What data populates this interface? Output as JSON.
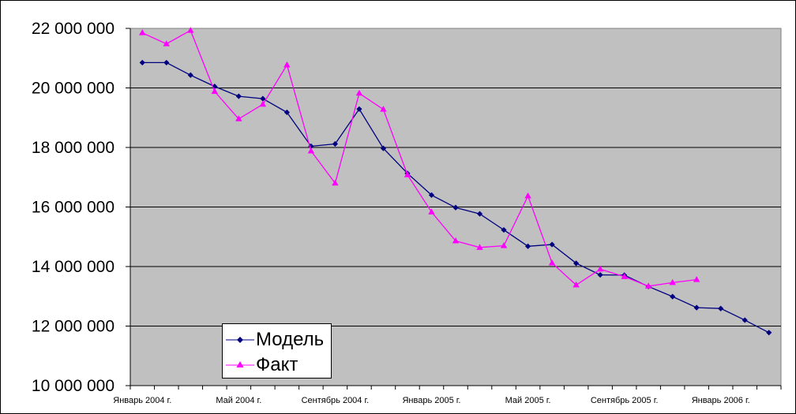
{
  "chart_data": {
    "type": "line",
    "background_color": "#C0C0C0",
    "gridlines": true,
    "ylim": [
      10000000,
      22000000
    ],
    "y_ticks": [
      {
        "value": 10000000,
        "label": "10 000 000"
      },
      {
        "value": 12000000,
        "label": "12 000 000"
      },
      {
        "value": 14000000,
        "label": "14 000 000"
      },
      {
        "value": 16000000,
        "label": "16 000 000"
      },
      {
        "value": 18000000,
        "label": "18 000 000"
      },
      {
        "value": 20000000,
        "label": "20 000 000"
      },
      {
        "value": 22000000,
        "label": "22 000 000"
      }
    ],
    "x_count": 27,
    "x_tick_labels": [
      {
        "index": 0,
        "label": "Январь 2004 г."
      },
      {
        "index": 4,
        "label": "Май 2004 г."
      },
      {
        "index": 8,
        "label": "Сентябрь 2004 г."
      },
      {
        "index": 12,
        "label": "Январь 2005 г."
      },
      {
        "index": 16,
        "label": "Май 2005 г."
      },
      {
        "index": 20,
        "label": "Сентябрь 2005 г."
      },
      {
        "index": 24,
        "label": "Январь 2006 г."
      }
    ],
    "series": [
      {
        "name": "Модель",
        "color": "#000080",
        "marker": "diamond",
        "values": [
          20850000,
          20850000,
          20430000,
          20050000,
          19720000,
          19640000,
          19180000,
          18040000,
          18120000,
          19290000,
          17970000,
          17130000,
          16400000,
          15980000,
          15770000,
          15230000,
          14680000,
          14740000,
          14110000,
          13720000,
          13710000,
          13330000,
          12990000,
          12620000,
          12590000,
          12200000,
          11780000
        ]
      },
      {
        "name": "Факт",
        "color": "#FF00FF",
        "marker": "triangle",
        "values": [
          21850000,
          21480000,
          21930000,
          19880000,
          18960000,
          19450000,
          20770000,
          17880000,
          16800000,
          19820000,
          19280000,
          17080000,
          15830000,
          14860000,
          14640000,
          14700000,
          16370000,
          14120000,
          13380000,
          13910000,
          13660000,
          13340000,
          13460000,
          13560000
        ]
      }
    ],
    "legend": {
      "placement": "bottom-left",
      "entries": [
        "Модель",
        "Факт"
      ]
    }
  }
}
